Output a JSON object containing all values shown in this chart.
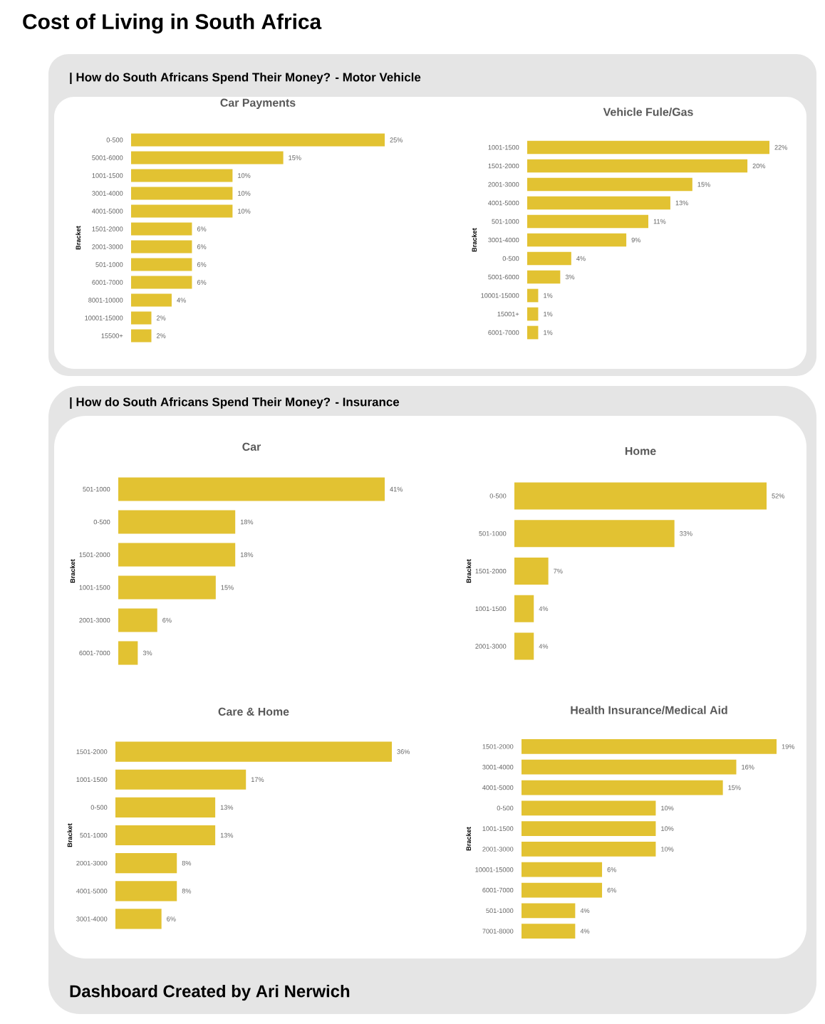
{
  "chart_data": [
    {
      "type": "other",
      "title": "Cost of Living in South Africa",
      "annotations": [
        "| How do South Africans Spend Their Money? - Motor Vehicle",
        "| How do South Africans Spend Their Money? - Insurance",
        "Dashboard Created by Ari Nerwich"
      ]
    },
    {
      "type": "bar",
      "orientation": "horizontal",
      "title": "Car Payments",
      "ylabel": "Bracket",
      "color": "#e2c232",
      "categories": [
        "0-500",
        "5001-6000",
        "1001-1500",
        "3001-4000",
        "4001-5000",
        "1501-2000",
        "2001-3000",
        "501-1000",
        "6001-7000",
        "8001-10000",
        "10001-15000",
        "15500+"
      ],
      "values": [
        25,
        15,
        10,
        10,
        10,
        6,
        6,
        6,
        6,
        4,
        2,
        2
      ],
      "value_labels": [
        "25%",
        "15%",
        "10%",
        "10%",
        "10%",
        "6%",
        "6%",
        "6%",
        "6%",
        "4%",
        "2%",
        "2%"
      ]
    },
    {
      "type": "bar",
      "orientation": "horizontal",
      "title": "Vehicle Fule/Gas",
      "ylabel": "Bracket",
      "color": "#e2c232",
      "categories": [
        "1001-1500",
        "1501-2000",
        "2001-3000",
        "4001-5000",
        "501-1000",
        "3001-4000",
        "0-500",
        "5001-6000",
        "10001-15000",
        "15001+",
        "6001-7000"
      ],
      "values": [
        22,
        20,
        15,
        13,
        11,
        9,
        4,
        3,
        1,
        1,
        1
      ],
      "value_labels": [
        "22%",
        "20%",
        "15%",
        "13%",
        "11%",
        "9%",
        "4%",
        "3%",
        "1%",
        "1%",
        "1%"
      ]
    },
    {
      "type": "bar",
      "orientation": "horizontal",
      "title": "Car",
      "ylabel": "Bracket",
      "color": "#e2c232",
      "categories": [
        "501-1000",
        "0-500",
        "1501-2000",
        "1001-1500",
        "2001-3000",
        "6001-7000"
      ],
      "values": [
        41,
        18,
        18,
        15,
        6,
        3
      ],
      "value_labels": [
        "41%",
        "18%",
        "18%",
        "15%",
        "6%",
        "3%"
      ]
    },
    {
      "type": "bar",
      "orientation": "horizontal",
      "title": "Home",
      "ylabel": "Bracket",
      "color": "#e2c232",
      "categories": [
        "0-500",
        "501-1000",
        "1501-2000",
        "1001-1500",
        "2001-3000"
      ],
      "values": [
        52,
        33,
        7,
        4,
        4
      ],
      "value_labels": [
        "52%",
        "33%",
        "7%",
        "4%",
        "4%"
      ]
    },
    {
      "type": "bar",
      "orientation": "horizontal",
      "title": "Care & Home",
      "ylabel": "Bracket",
      "color": "#e2c232",
      "categories": [
        "1501-2000",
        "1001-1500",
        "0-500",
        "501-1000",
        "2001-3000",
        "4001-5000",
        "3001-4000"
      ],
      "values": [
        36,
        17,
        13,
        13,
        8,
        8,
        6
      ],
      "value_labels": [
        "36%",
        "17%",
        "13%",
        "13%",
        "8%",
        "8%",
        "6%"
      ]
    },
    {
      "type": "bar",
      "orientation": "horizontal",
      "title": "Health Insurance/Medical Aid",
      "ylabel": "Bracket",
      "color": "#e2c232",
      "categories": [
        "1501-2000",
        "3001-4000",
        "4001-5000",
        "0-500",
        "1001-1500",
        "2001-3000",
        "10001-15000",
        "6001-7000",
        "501-1000",
        "7001-8000"
      ],
      "values": [
        19,
        16,
        15,
        10,
        10,
        10,
        6,
        6,
        4,
        4
      ],
      "value_labels": [
        "19%",
        "16%",
        "15%",
        "10%",
        "10%",
        "10%",
        "6%",
        "6%",
        "4%",
        "4%"
      ]
    }
  ]
}
